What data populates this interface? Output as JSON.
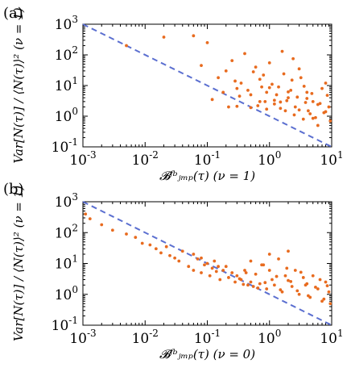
{
  "colors": {
    "points": "#e86b1f",
    "diagonal": "#5b6fd0",
    "axis": "#000000"
  },
  "chart_data": [
    {
      "type": "scatter",
      "panel_label": "(a)",
      "xscale": "log",
      "yscale": "log",
      "xlim": [
        0.001,
        10
      ],
      "ylim": [
        0.1,
        1000
      ],
      "x_tick_labels": [
        {
          "base": "10",
          "exp": "-3"
        },
        {
          "base": "10",
          "exp": "-2"
        },
        {
          "base": "10",
          "exp": "-1"
        },
        {
          "base": "10",
          "exp": "0"
        },
        {
          "base": "10",
          "exp": "1"
        }
      ],
      "y_tick_labels": [
        {
          "base": "10",
          "exp": "-1"
        },
        {
          "base": "10",
          "exp": "0"
        },
        {
          "base": "10",
          "exp": "1"
        },
        {
          "base": "10",
          "exp": "2"
        },
        {
          "base": "10",
          "exp": "3"
        }
      ],
      "xlabel": "𝓑ᶠᵇⱼₘₚ(τ)  (ν = 1)",
      "ylabel": "Var[N(τ)] / ⟨N(τ)⟩²  (ν = 1)",
      "reference_line": {
        "style": "dashed",
        "slope": -1,
        "x": [
          0.001,
          10
        ],
        "y": [
          1000,
          0.1
        ]
      },
      "x": [
        0.005,
        0.02,
        0.06,
        0.1,
        0.08,
        0.15,
        0.2,
        0.25,
        0.3,
        0.35,
        0.4,
        0.5,
        0.6,
        0.7,
        0.8,
        0.9,
        1.0,
        1.2,
        1.4,
        1.6,
        1.8,
        2.0,
        2.3,
        2.6,
        3.0,
        3.5,
        4.0,
        4.5,
        5.0,
        6.0,
        7.0,
        8.0,
        9.0,
        0.12,
        0.18,
        0.22,
        0.28,
        0.33,
        0.45,
        0.55,
        0.65,
        0.75,
        0.85,
        1.1,
        1.3,
        1.5,
        1.7,
        1.9,
        2.2,
        2.5,
        2.8,
        3.2,
        3.8,
        4.2,
        4.8,
        5.5,
        6.5,
        7.5,
        8.5,
        9.5,
        0.3,
        0.5,
        0.7,
        1.0,
        1.5,
        2.0,
        3.0,
        4.0,
        5.0,
        6.0,
        8.0,
        2.4,
        3.6,
        1.2,
        0.9
      ],
      "y": [
        200,
        380,
        420,
        250,
        45,
        18,
        30,
        65,
        8,
        12,
        110,
        5,
        40,
        3,
        22,
        6,
        55,
        2.5,
        9,
        130,
        1.5,
        4,
        15,
        2,
        35,
        0.8,
        6,
        1.2,
        3,
        0.5,
        8,
        12,
        2,
        3.5,
        6,
        2,
        14,
        4.5,
        7,
        28,
        2.2,
        9,
        3,
        11,
        5,
        1.8,
        24,
        3.2,
        7,
        1.1,
        4.2,
        18,
        2.8,
        1.5,
        5.5,
        0.9,
        2.6,
        1.3,
        4.8,
        0.7,
        2.1,
        1.9,
        16,
        8.5,
        2.9,
        6.2,
        1.6,
        3.8,
        0.85,
        2.4,
        1.4,
        75,
        9.5,
        3.3,
        1.7
      ]
    },
    {
      "type": "scatter",
      "panel_label": "(b)",
      "xscale": "log",
      "yscale": "log",
      "xlim": [
        0.001,
        10
      ],
      "ylim": [
        0.1,
        1000
      ],
      "x_tick_labels": [
        {
          "base": "10",
          "exp": "-3"
        },
        {
          "base": "10",
          "exp": "-2"
        },
        {
          "base": "10",
          "exp": "-1"
        },
        {
          "base": "10",
          "exp": "0"
        },
        {
          "base": "10",
          "exp": "1"
        }
      ],
      "y_tick_labels": [
        {
          "base": "10",
          "exp": "-1"
        },
        {
          "base": "10",
          "exp": "0"
        },
        {
          "base": "10",
          "exp": "1"
        },
        {
          "base": "10",
          "exp": "2"
        },
        {
          "base": "10",
          "exp": "3"
        }
      ],
      "xlabel": "𝓑ᶠᵇⱼₘₚ(τ)  (ν = 0)",
      "ylabel": "Var[N(τ)] / ⟨N(τ)⟩²  (ν = 1)",
      "reference_line": {
        "style": "dashed",
        "slope": -1,
        "x": [
          0.001,
          10
        ],
        "y": [
          1000,
          0.1
        ]
      },
      "x": [
        0.0011,
        0.0013,
        0.002,
        0.003,
        0.005,
        0.007,
        0.009,
        0.012,
        0.015,
        0.018,
        0.022,
        0.025,
        0.03,
        0.035,
        0.04,
        0.05,
        0.06,
        0.07,
        0.08,
        0.09,
        0.1,
        0.11,
        0.12,
        0.14,
        0.16,
        0.18,
        0.2,
        0.22,
        0.25,
        0.28,
        0.3,
        0.35,
        0.4,
        0.45,
        0.5,
        0.55,
        0.6,
        0.7,
        0.8,
        0.9,
        1.0,
        1.1,
        1.2,
        1.4,
        1.6,
        1.8,
        2.0,
        2.3,
        2.6,
        3.0,
        3.5,
        4.0,
        4.5,
        5.0,
        6.0,
        7.0,
        8.0,
        9.0,
        9.5,
        0.13,
        0.15,
        0.33,
        0.38,
        0.42,
        0.65,
        0.75,
        0.85,
        1.3,
        1.5,
        1.9,
        2.2,
        2.8,
        3.2,
        3.8,
        4.2,
        5.5,
        6.5,
        7.5,
        8.5,
        0.06,
        0.08,
        0.5,
        1.0,
        2.0
      ],
      "y": [
        400,
        280,
        180,
        120,
        90,
        70,
        45,
        40,
        30,
        22,
        35,
        18,
        15,
        12,
        25,
        8,
        6,
        14,
        5,
        9,
        10,
        4,
        7,
        5.5,
        3,
        6,
        8,
        3.5,
        5,
        2.5,
        4,
        3,
        6,
        2,
        12,
        1.8,
        4.5,
        2.2,
        9,
        1.5,
        6,
        3,
        2,
        14,
        1.2,
        4,
        2.8,
        1.8,
        6,
        1,
        3.5,
        2.2,
        0.8,
        4,
        1.5,
        0.6,
        2.5,
        1.2,
        0.5,
        12,
        8,
        3.2,
        2.1,
        5,
        1.6,
        9,
        2.4,
        3.8,
        1.4,
        7,
        2.6,
        1.3,
        5.2,
        2,
        0.9,
        1.7,
        3,
        0.7,
        1.9,
        20,
        15,
        2.5,
        20,
        25
      ]
    }
  ]
}
